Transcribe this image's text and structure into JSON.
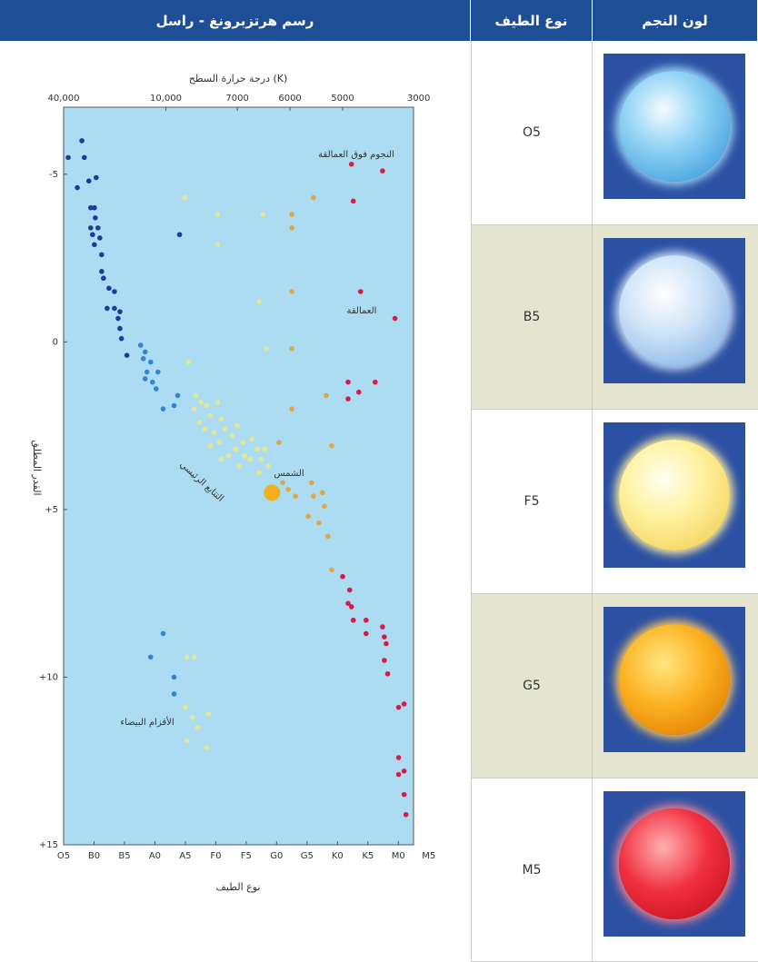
{
  "chart_data": {
    "type": "scatter",
    "title": "رسم هرتزبرونغ - راسل",
    "x_label": "نوع الطيف",
    "x2_label": "درجة حرارة السطح (K)",
    "y_label": "القدر المطلق",
    "xlim": [
      0,
      11.5
    ],
    "xticks": [
      {
        "value": 0,
        "label": "O5"
      },
      {
        "value": 1,
        "label": "B0"
      },
      {
        "value": 2,
        "label": "B5"
      },
      {
        "value": 3,
        "label": "A0"
      },
      {
        "value": 4,
        "label": "A5"
      },
      {
        "value": 5,
        "label": "F0"
      },
      {
        "value": 6,
        "label": "F5"
      },
      {
        "value": 7,
        "label": "G0"
      },
      {
        "value": 8,
        "label": "G5"
      },
      {
        "value": 9,
        "label": "K0"
      },
      {
        "value": 10,
        "label": "K5"
      },
      {
        "value": 11,
        "label": "M0"
      },
      {
        "value": 12,
        "label": "M5"
      }
    ],
    "x2ticks": [
      {
        "value": 0,
        "label": "40,000"
      },
      {
        "value": 3.36,
        "label": "10,000"
      },
      {
        "value": 5.71,
        "label": "7000"
      },
      {
        "value": 7.44,
        "label": "6000"
      },
      {
        "value": 9.17,
        "label": "5000"
      },
      {
        "value": 11.67,
        "label": "3000"
      }
    ],
    "ylim": [
      -7,
      15
    ],
    "invert_y": true,
    "yticks": [
      -5,
      0,
      {
        "value": 5,
        "label": "+5"
      },
      {
        "value": 10,
        "label": "+10"
      },
      {
        "value": 15,
        "label": "+15"
      }
    ],
    "annotations": [
      "النجوم فوق العمالقة",
      "العمالقة",
      "الشمس",
      "التتابع الرئيسي",
      "الأقزام البيضاء"
    ],
    "series": [
      {
        "color": "#1f3b9a",
        "size": 2.8,
        "x": [
          0.15,
          0.6,
          0.68,
          0.45,
          0.83,
          1.07,
          0.89,
          1.01,
          1.04,
          0.89,
          1.13,
          0.95,
          1.19,
          1.01,
          1.25,
          1.25,
          1.31,
          1.49,
          1.67,
          1.43,
          1.67,
          1.85,
          1.79,
          1.85,
          1.9,
          2.08,
          3.81
        ],
        "y": [
          -5.5,
          -6.0,
          -5.5,
          -4.6,
          -4.8,
          -4.9,
          -4.0,
          -4.0,
          -3.7,
          -3.4,
          -3.4,
          -3.2,
          -3.1,
          -2.9,
          -2.6,
          -2.1,
          -1.9,
          -1.6,
          -1.5,
          -1.0,
          -1.0,
          -0.9,
          -0.7,
          -0.4,
          -0.1,
          0.4,
          -3.2
        ]
      },
      {
        "color": "#2f86d6",
        "size": 2.8,
        "x": [
          2.53,
          2.68,
          2.62,
          2.86,
          2.74,
          2.68,
          2.92,
          3.1,
          3.04,
          3.27,
          3.75,
          3.63,
          3.27,
          2.86,
          3.63,
          3.63
        ],
        "y": [
          0.1,
          0.3,
          0.5,
          0.6,
          0.9,
          1.1,
          1.2,
          0.9,
          1.4,
          2.0,
          1.6,
          1.9,
          8.7,
          9.4,
          10.0,
          10.5
        ]
      },
      {
        "color": "#e6e78c",
        "size": 2.8,
        "x": [
          3.99,
          5.06,
          5.06,
          6.55,
          6.43,
          6.67,
          4.11,
          4.35,
          4.52,
          4.29,
          4.7,
          4.82,
          4.46,
          5.06,
          5.18,
          4.64,
          4.94,
          5.3,
          5.54,
          5.12,
          4.82,
          5.71,
          5.89,
          5.65,
          5.42,
          5.95,
          6.19,
          6.37,
          6.13,
          5.77,
          6.49,
          6.61,
          5.18,
          6.43,
          6.73,
          4.05,
          4.29,
          4.0,
          4.23,
          4.4,
          4.05,
          4.7,
          4.76
        ],
        "y": [
          -4.3,
          -3.8,
          -2.9,
          -3.8,
          -1.2,
          0.2,
          0.6,
          1.6,
          1.8,
          2.0,
          1.9,
          2.2,
          2.4,
          1.8,
          2.3,
          2.6,
          2.7,
          2.6,
          2.8,
          3.0,
          3.1,
          2.5,
          3.0,
          3.2,
          3.4,
          3.4,
          2.9,
          3.2,
          3.5,
          3.7,
          3.5,
          3.2,
          3.5,
          3.9,
          3.7,
          9.4,
          9.4,
          10.9,
          11.2,
          11.5,
          11.9,
          12.1,
          11.1
        ]
      },
      {
        "color": "#e0a545",
        "size": 2.8,
        "x": [
          7.5,
          7.5,
          8.21,
          7.5,
          7.5,
          7.5,
          8.63,
          8.81,
          7.08,
          7.2,
          7.38,
          7.62,
          8.15,
          8.21,
          8.51,
          8.57,
          8.39,
          8.04,
          8.69,
          8.81
        ],
        "y": [
          -3.8,
          -3.4,
          -4.3,
          -1.5,
          0.2,
          2.0,
          1.6,
          3.1,
          3.0,
          4.2,
          4.4,
          4.6,
          4.2,
          4.6,
          4.5,
          4.9,
          5.4,
          5.2,
          5.8,
          6.8
        ]
      },
      {
        "color": "#d0204a",
        "size": 2.8,
        "x": [
          9.46,
          10.48,
          9.52,
          9.76,
          10.89,
          9.35,
          9.35,
          9.7,
          10.24,
          9.17,
          9.4,
          9.35,
          9.46,
          9.52,
          9.94,
          9.94,
          10.48,
          10.54,
          10.6,
          10.54,
          10.65,
          11.01,
          11.19,
          11.01,
          11.01,
          11.19,
          11.19,
          11.25
        ],
        "y": [
          -5.3,
          -5.1,
          -4.2,
          -1.5,
          -0.7,
          1.2,
          1.7,
          1.5,
          1.2,
          7.0,
          7.4,
          7.8,
          7.9,
          8.3,
          8.3,
          8.7,
          8.5,
          8.8,
          9.0,
          9.5,
          9.9,
          10.9,
          10.8,
          12.4,
          12.9,
          12.8,
          13.5,
          14.1
        ]
      },
      {
        "color": "#f2b01c",
        "size": 9,
        "x": [
          6.85
        ],
        "y": [
          4.5
        ]
      }
    ]
  },
  "table": {
    "headers": [
      "نوع الطيف",
      "لون النجم"
    ],
    "rows": [
      "O5",
      "B5",
      "F5",
      "G5",
      "M5"
    ]
  }
}
